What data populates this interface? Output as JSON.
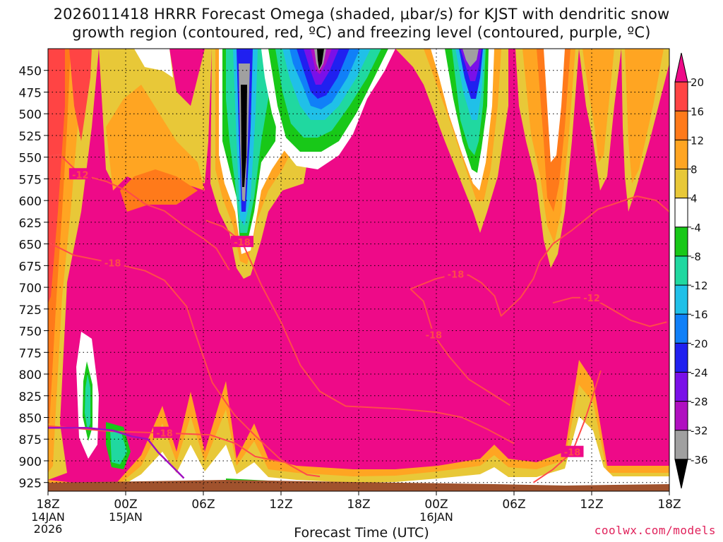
{
  "header": {
    "title_line1": "2026011418 HRRR Forecast Omega (shaded, μbar/s) for KJST with dendritic snow",
    "title_line2": "growth region (contoured, red, ºC) and freezing level (contoured, purple, ºC)"
  },
  "footer": {
    "credit": "coolwx.com/models",
    "x_axis_title": "Forecast Time (UTC)"
  },
  "colors": {
    "dominant_fill": "#ee0a88",
    "dgz_contour": "#ff4a4a",
    "freezing_level": "#a010c0",
    "terrain": "#a0522d"
  },
  "chart_data": {
    "type": "heatmap",
    "title": "2026011418 HRRR Forecast Omega (shaded, μbar/s) for KJST with dendritic snow growth region (contoured, red, ºC) and freezing level (contoured, purple, ºC)",
    "xlabel": "Forecast Time (UTC)",
    "ylabel": "",
    "x_ticks": [
      {
        "hour": 0,
        "label": "18Z",
        "sub": [
          "14JAN",
          "2026"
        ]
      },
      {
        "hour": 6,
        "label": "00Z",
        "sub": [
          "15JAN"
        ]
      },
      {
        "hour": 12,
        "label": "06Z",
        "sub": []
      },
      {
        "hour": 18,
        "label": "12Z",
        "sub": []
      },
      {
        "hour": 24,
        "label": "18Z",
        "sub": []
      },
      {
        "hour": 30,
        "label": "00Z",
        "sub": [
          "16JAN"
        ]
      },
      {
        "hour": 36,
        "label": "06Z",
        "sub": []
      },
      {
        "hour": 42,
        "label": "12Z",
        "sub": []
      },
      {
        "hour": 48,
        "label": "18Z",
        "sub": []
      }
    ],
    "y_ticks": [
      450,
      475,
      500,
      525,
      550,
      575,
      600,
      625,
      650,
      675,
      700,
      725,
      750,
      775,
      800,
      825,
      850,
      875,
      900,
      925
    ],
    "ylim": [
      935,
      425
    ],
    "xlim": [
      0,
      48
    ],
    "grid": true,
    "colorbar": {
      "labels": [
        "20",
        "16",
        "12",
        "8",
        "4",
        "-4",
        "-8",
        "-12",
        "-16",
        "-20",
        "-24",
        "-28",
        "-32",
        "-36"
      ],
      "colors": [
        "#ee0a88",
        "#ff4444",
        "#ff7a1a",
        "#ffa522",
        "#e8c838",
        "#ffffff",
        "#18c818",
        "#20d8a0",
        "#20c0e8",
        "#1080f8",
        "#2020f0",
        "#7a10e8",
        "#b010c0",
        "#a0a0a0",
        "#000000"
      ]
    },
    "dgz_contours": [
      {
        "label": "-12",
        "points": [
          [
            0,
            549
          ],
          [
            0.9,
            547
          ],
          [
            2.5,
            570
          ],
          [
            4.5,
            578
          ],
          [
            6,
            588
          ],
          [
            7.5,
            604
          ],
          [
            9,
            612
          ],
          [
            10.5,
            629
          ],
          [
            12,
            644
          ],
          [
            13,
            655
          ],
          [
            14,
            680
          ]
        ]
      },
      {
        "label": "-18",
        "points": [
          [
            0,
            648
          ],
          [
            2,
            663
          ],
          [
            5,
            672
          ],
          [
            7.5,
            681
          ],
          [
            9,
            692
          ],
          [
            10.7,
            722
          ],
          [
            11.3,
            750
          ],
          [
            12.7,
            810
          ],
          [
            14.4,
            847
          ],
          [
            16,
            871
          ],
          [
            18,
            899
          ],
          [
            20,
            916
          ],
          [
            21,
            918
          ]
        ]
      },
      {
        "label": "-18",
        "points": [
          [
            0,
            860
          ],
          [
            5,
            866
          ],
          [
            9,
            868
          ],
          [
            12.5,
            870
          ],
          [
            14.5,
            880
          ],
          [
            16,
            895
          ],
          [
            18,
            901
          ]
        ]
      },
      {
        "label": "-18",
        "points": [
          [
            12.2,
            623
          ],
          [
            13.5,
            630
          ],
          [
            15,
            648
          ],
          [
            16.5,
            698
          ],
          [
            18,
            740
          ],
          [
            19.5,
            790
          ],
          [
            21,
            820
          ],
          [
            23,
            837
          ],
          [
            27,
            840
          ],
          [
            30,
            844
          ],
          [
            32,
            850
          ],
          [
            34,
            864
          ],
          [
            36,
            880
          ]
        ]
      },
      {
        "label": "-18",
        "points": [
          [
            28,
            702
          ],
          [
            29,
            716
          ],
          [
            29.8,
            755
          ],
          [
            31,
            780
          ],
          [
            32.5,
            806
          ],
          [
            34,
            820
          ],
          [
            35.7,
            836
          ]
        ]
      },
      {
        "label": "-18",
        "points": [
          [
            28,
            702
          ],
          [
            30,
            690
          ],
          [
            31.5,
            685
          ],
          [
            32.5,
            686
          ],
          [
            33.5,
            695
          ],
          [
            34.5,
            710
          ],
          [
            35,
            733
          ],
          [
            36.5,
            712
          ],
          [
            37.5,
            690
          ],
          [
            38,
            670
          ],
          [
            39,
            650
          ],
          [
            40.5,
            634
          ],
          [
            42.5,
            610
          ],
          [
            45.5,
            595
          ],
          [
            47,
            600
          ],
          [
            48,
            613
          ]
        ]
      },
      {
        "label": "-12",
        "points": [
          [
            39,
            718
          ],
          [
            40.5,
            712
          ],
          [
            42,
            712
          ],
          [
            43.5,
            725
          ],
          [
            45,
            738
          ],
          [
            46.5,
            745
          ],
          [
            47.8,
            740
          ]
        ]
      },
      {
        "label": "-18",
        "points": [
          [
            37.5,
            925
          ],
          [
            39,
            910
          ],
          [
            40.5,
            890
          ],
          [
            41.5,
            852
          ],
          [
            42.2,
            820
          ],
          [
            42.7,
            796
          ]
        ]
      }
    ],
    "freezing_level": {
      "points": [
        [
          0,
          862
        ],
        [
          3,
          862
        ],
        [
          5,
          865
        ],
        [
          6.5,
          872
        ],
        [
          7.7,
          875
        ],
        [
          8.5,
          890
        ],
        [
          9.5,
          905
        ],
        [
          10.5,
          920
        ]
      ]
    }
  }
}
